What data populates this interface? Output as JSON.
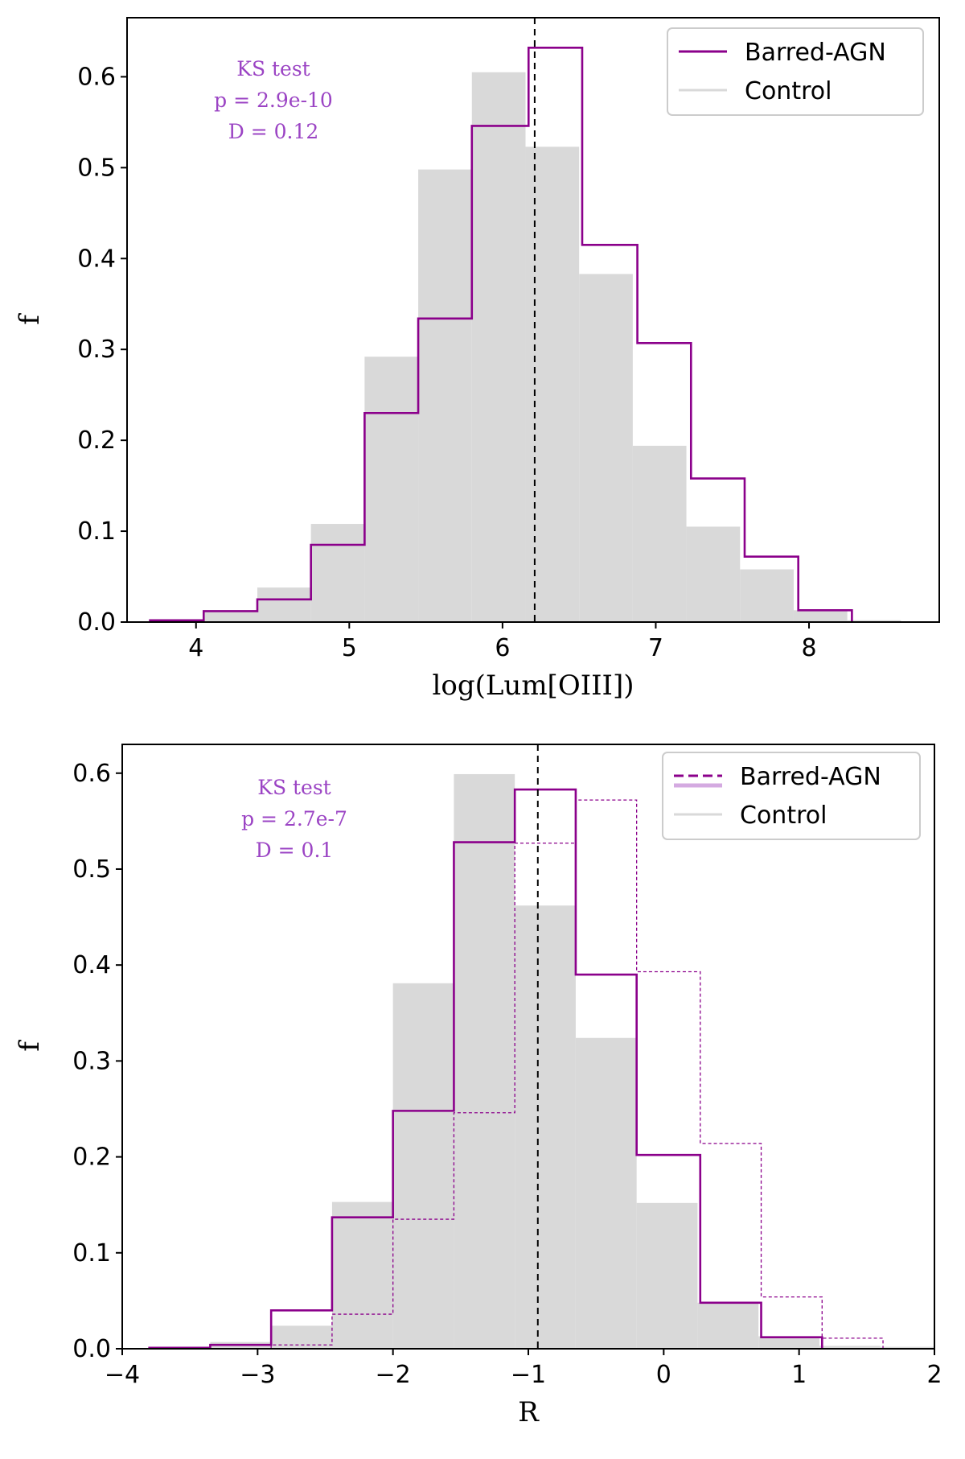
{
  "chart_data": [
    {
      "type": "histogram",
      "xlabel": "log(Lum[OIII])",
      "ylabel": "f",
      "xlim": [
        3.55,
        8.85
      ],
      "ylim": [
        0.0,
        0.665
      ],
      "xticks": [
        4,
        5,
        6,
        7,
        8
      ],
      "xtick_labels": [
        "4",
        "5",
        "6",
        "7",
        "8"
      ],
      "yticks": [
        0.0,
        0.1,
        0.2,
        0.3,
        0.4,
        0.5,
        0.6
      ],
      "ytick_labels": [
        "0.0",
        "0.1",
        "0.2",
        "0.3",
        "0.4",
        "0.5",
        "0.6"
      ],
      "vline_x": 6.21,
      "legend": {
        "placement": "top-right",
        "entries": [
          {
            "label": "Barred-AGN",
            "style": "solid",
            "color": "#8b008b"
          },
          {
            "label": "Control",
            "style": "solid",
            "color": "#d9d9d9"
          }
        ]
      },
      "annotation": {
        "title": "KS test",
        "p": "p = 2.9e-10",
        "D": "D = 0.12"
      },
      "control_edges": [
        3.7,
        4.05,
        4.4,
        4.75,
        5.1,
        5.45,
        5.8,
        6.15,
        6.5,
        6.85,
        7.2,
        7.55,
        7.9,
        8.25,
        8.6
      ],
      "control_values": [
        0.001,
        0.012,
        0.038,
        0.108,
        0.292,
        0.498,
        0.605,
        0.523,
        0.383,
        0.194,
        0.105,
        0.058,
        0.013,
        0.002
      ],
      "series": [
        {
          "name": "Barred-AGN",
          "style": "solid",
          "edges": [
            3.7,
            4.05,
            4.4,
            4.75,
            5.1,
            5.45,
            5.8,
            6.17,
            6.52,
            6.88,
            7.23,
            7.58,
            7.93,
            8.28
          ],
          "values": [
            0.002,
            0.012,
            0.025,
            0.085,
            0.23,
            0.334,
            0.546,
            0.632,
            0.415,
            0.307,
            0.158,
            0.072,
            0.013
          ]
        }
      ]
    },
    {
      "type": "histogram",
      "xlabel": "R",
      "ylabel": "f",
      "xlim": [
        -4.0,
        2.0
      ],
      "ylim": [
        0.0,
        0.63
      ],
      "xticks": [
        -4,
        -3,
        -2,
        -1,
        0,
        1,
        2
      ],
      "xtick_labels": [
        "−4",
        "−3",
        "−2",
        "−1",
        "0",
        "1",
        "2"
      ],
      "yticks": [
        0.0,
        0.1,
        0.2,
        0.3,
        0.4,
        0.5,
        0.6
      ],
      "ytick_labels": [
        "0.0",
        "0.1",
        "0.2",
        "0.3",
        "0.4",
        "0.5",
        "0.6"
      ],
      "vline_x": -0.93,
      "legend": {
        "placement": "top-right",
        "entries": [
          {
            "label": "Barred-AGN",
            "style": "dashed",
            "color": "#8b008b"
          },
          {
            "label": "Control",
            "style": "solid",
            "color": "#d9d9d9"
          }
        ]
      },
      "annotation": {
        "title": "KS test",
        "p": "p = 2.7e-7",
        "D": "D = 0.1"
      },
      "control_edges": [
        -3.8,
        -3.35,
        -2.9,
        -2.45,
        -2.0,
        -1.55,
        -1.1,
        -0.65,
        -0.2,
        0.25,
        0.7,
        1.15,
        1.6,
        2.0
      ],
      "control_values": [
        0.002,
        0.007,
        0.024,
        0.153,
        0.381,
        0.599,
        0.462,
        0.324,
        0.152,
        0.048,
        0.013,
        0.003,
        0.002
      ],
      "series": [
        {
          "name": "Barred-AGN",
          "style": "solid",
          "edges": [
            -3.8,
            -3.35,
            -2.9,
            -2.45,
            -2.0,
            -1.55,
            -1.1,
            -0.65,
            -0.2,
            0.27,
            0.72,
            1.17
          ],
          "values": [
            0.001,
            0.004,
            0.04,
            0.137,
            0.248,
            0.528,
            0.583,
            0.39,
            0.202,
            0.048,
            0.012
          ]
        },
        {
          "name": "Barred-AGN (dashed)",
          "style": "dashed",
          "edges": [
            -2.9,
            -2.45,
            -2.0,
            -1.55,
            -1.1,
            -0.65,
            -0.2,
            0.27,
            0.72,
            1.17,
            1.62
          ],
          "values": [
            0.004,
            0.036,
            0.135,
            0.246,
            0.527,
            0.572,
            0.393,
            0.214,
            0.054,
            0.011
          ]
        }
      ]
    }
  ]
}
